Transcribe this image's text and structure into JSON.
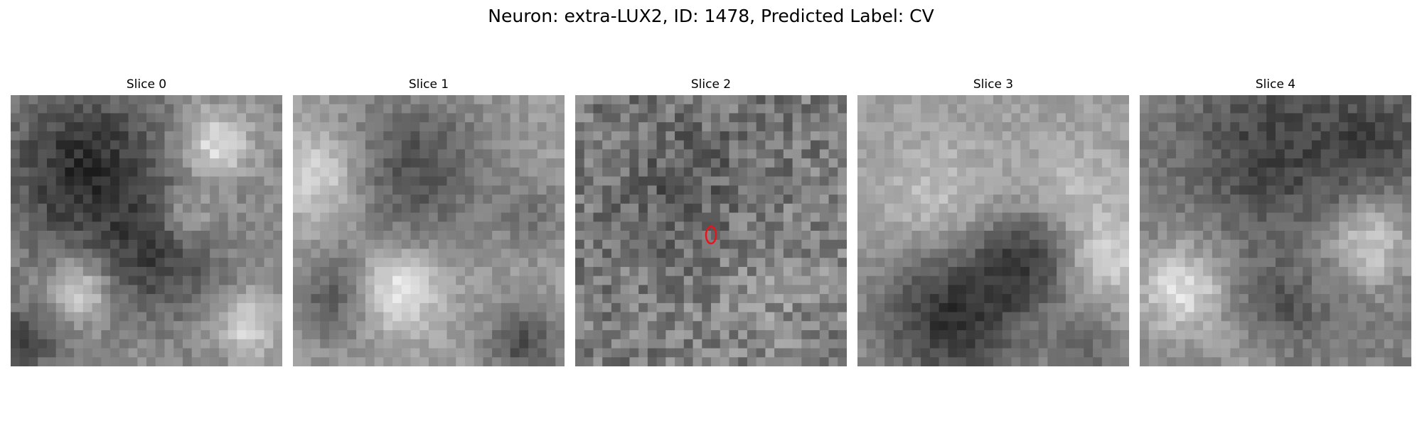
{
  "figure": {
    "title": "Neuron: extra-LUX2, ID: 1478, Predicted Label: CV"
  },
  "slices": [
    {
      "label": "Slice 0",
      "pattern": "dark-region-upper-left-bright-lower-band",
      "marker": false
    },
    {
      "label": "Slice 1",
      "pattern": "dark-disc-center-bright-surround",
      "marker": false
    },
    {
      "label": "Slice 2",
      "pattern": "noisy-medium-gray",
      "marker": true
    },
    {
      "label": "Slice 3",
      "pattern": "bright-upper-dark-lower",
      "marker": false
    },
    {
      "label": "Slice 4",
      "pattern": "dark-upper-bright-lower-left",
      "marker": false
    }
  ],
  "marker": {
    "color": "#e8141c",
    "shape": "ellipse-outline"
  }
}
